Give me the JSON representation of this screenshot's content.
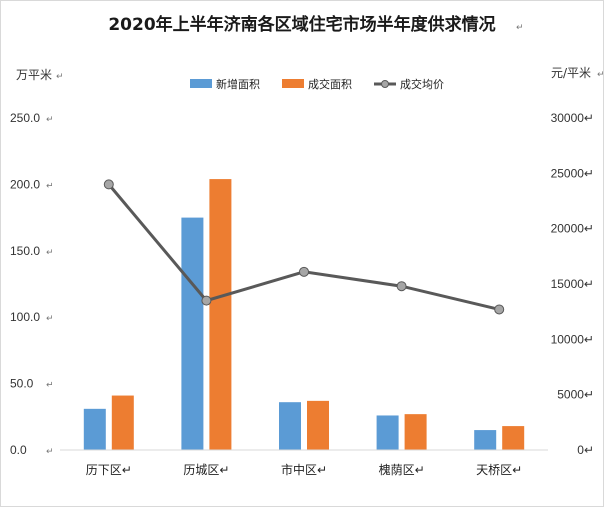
{
  "chart_data": {
    "type": "bar",
    "title": "2020年上半年济南各区域住宅市场半年度供求情况",
    "ylabel": "万平米",
    "y2label": "元/平米",
    "categories": [
      "历下区",
      "历城区",
      "市中区",
      "槐荫区",
      "天桥区"
    ],
    "series": [
      {
        "name": "新增面积",
        "type": "bar",
        "axis": "left",
        "color": "#5b9bd5",
        "values": [
          31,
          175,
          36,
          26,
          15
        ]
      },
      {
        "name": "成交面积",
        "type": "bar",
        "axis": "left",
        "color": "#ed7d31",
        "values": [
          41,
          204,
          37,
          27,
          18
        ]
      },
      {
        "name": "成交均价",
        "type": "line",
        "axis": "right",
        "color": "#595959",
        "values": [
          24000,
          13500,
          16100,
          14800,
          12700
        ]
      }
    ],
    "ylim": [
      0,
      250
    ],
    "yticks": [
      "0.0",
      "50.0",
      "100.0",
      "150.0",
      "200.0",
      "250.0"
    ],
    "y2lim": [
      0,
      30000
    ],
    "y2ticks": [
      "0",
      "5000",
      "10000",
      "15000",
      "20000",
      "25000",
      "30000"
    ],
    "legend_position": "top-center",
    "grid": false
  },
  "marks": {
    "paragraph": "↵"
  }
}
